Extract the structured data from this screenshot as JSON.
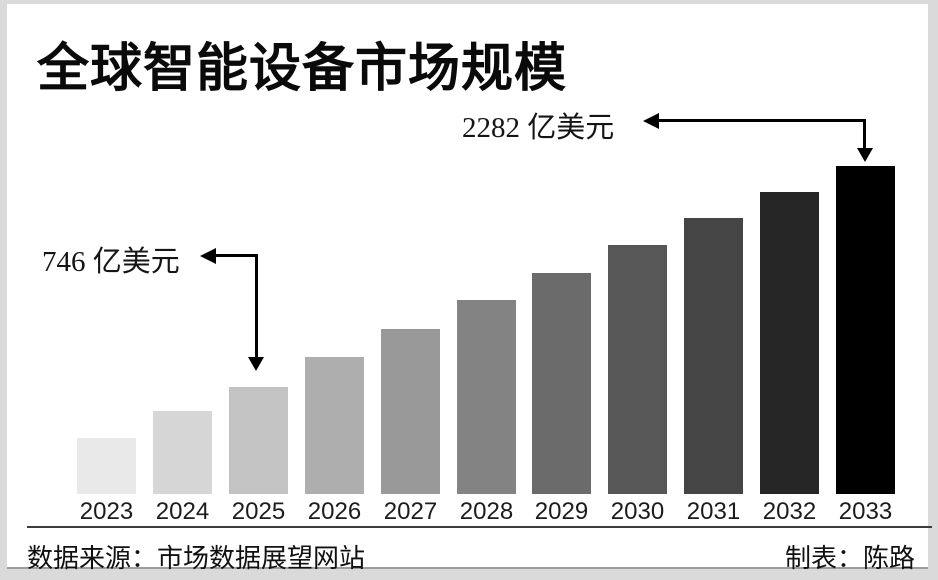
{
  "title": "全球智能设备市场规模",
  "annotations": {
    "max": {
      "text": "2282 亿美元",
      "year": "2033"
    },
    "labeled": {
      "text": "746 亿美元",
      "year": "2025"
    }
  },
  "footer": {
    "source": "数据来源：市场数据展望网站",
    "credit": "制表：陈路"
  },
  "colors": {
    "page_background": "#dadada",
    "card_background": "#ffffff",
    "separator": "#3c3c3c",
    "arrow": "#000000"
  },
  "chart_data": {
    "type": "bar",
    "title": "全球智能设备市场规模",
    "unit": "亿美元",
    "categories": [
      "2023",
      "2024",
      "2025",
      "2026",
      "2027",
      "2028",
      "2029",
      "2030",
      "2031",
      "2032",
      "2033"
    ],
    "values": [
      390,
      580,
      746,
      950,
      1150,
      1350,
      1540,
      1730,
      1920,
      2100,
      2282
    ],
    "labeled_points": [
      {
        "category": "2025",
        "value": 746,
        "label": "746 亿美元"
      },
      {
        "category": "2033",
        "value": 2282,
        "label": "2282 亿美元"
      }
    ],
    "bar_colors": [
      "#e9e9e9",
      "#d6d6d6",
      "#c3c3c3",
      "#aeaeae",
      "#999999",
      "#838383",
      "#6b6b6b",
      "#575757",
      "#454545",
      "#262626",
      "#000000"
    ],
    "xlabel": "",
    "ylabel": "",
    "ylim": [
      0,
      2282
    ],
    "grid": false,
    "legend": false,
    "values_note": "only 2025 and 2033 are labeled in the figure; other values estimated from bar heights"
  }
}
